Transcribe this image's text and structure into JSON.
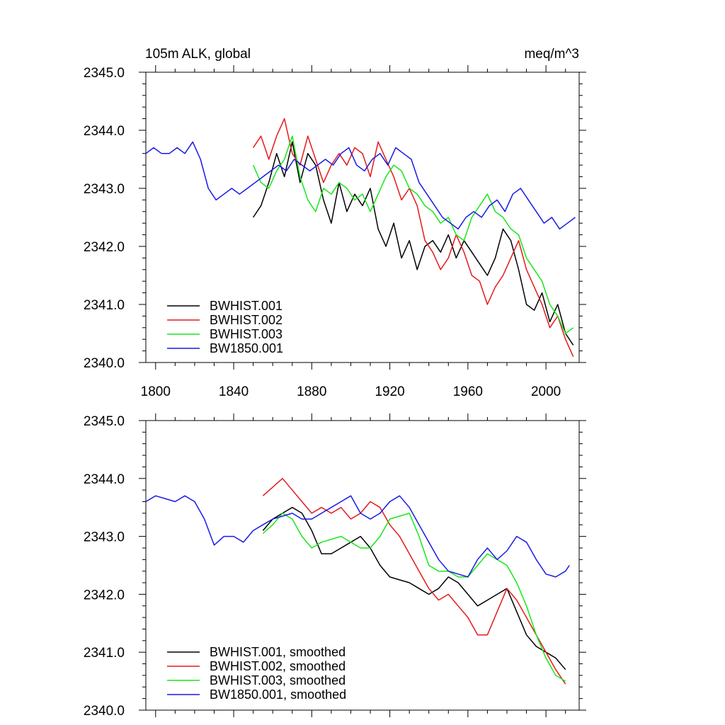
{
  "colors": {
    "black": "#000000",
    "red": "#e41a1c",
    "green": "#19e619",
    "blue": "#1919e6"
  },
  "chart_data": [
    {
      "type": "line",
      "title": "105m ALK, global",
      "units": "meq/m^3",
      "xlim": [
        1795,
        2017
      ],
      "ylim": [
        2340.0,
        2345.0
      ],
      "x_ticks": [
        "1800",
        "1840",
        "1880",
        "1920",
        "1960",
        "2000"
      ],
      "y_ticks": [
        "2340.0",
        "2341.0",
        "2342.0",
        "2343.0",
        "2344.0",
        "2345.0"
      ],
      "legend_position": "bottom-left",
      "series": [
        {
          "name": "BWHIST.001",
          "color": "#000000",
          "x": [
            1850,
            1854,
            1858,
            1862,
            1866,
            1870,
            1874,
            1878,
            1882,
            1886,
            1890,
            1894,
            1898,
            1902,
            1906,
            1910,
            1914,
            1918,
            1922,
            1926,
            1930,
            1934,
            1938,
            1942,
            1946,
            1950,
            1954,
            1958,
            1962,
            1966,
            1970,
            1974,
            1978,
            1982,
            1986,
            1990,
            1994,
            1998,
            2002,
            2006,
            2010,
            2014
          ],
          "y": [
            2342.5,
            2342.7,
            2343.1,
            2343.6,
            2343.2,
            2343.8,
            2343.1,
            2343.6,
            2343.4,
            2342.8,
            2342.4,
            2343.1,
            2342.6,
            2342.9,
            2342.7,
            2343.0,
            2342.3,
            2342.0,
            2342.4,
            2341.8,
            2342.1,
            2341.6,
            2342.0,
            2342.1,
            2341.9,
            2342.2,
            2341.8,
            2342.1,
            2341.9,
            2341.7,
            2341.5,
            2341.8,
            2342.3,
            2342.1,
            2341.6,
            2341.0,
            2340.9,
            2341.2,
            2340.7,
            2341.0,
            2340.5,
            2340.3
          ]
        },
        {
          "name": "BWHIST.002",
          "color": "#e41a1c",
          "x": [
            1850,
            1854,
            1858,
            1862,
            1866,
            1870,
            1874,
            1878,
            1882,
            1886,
            1890,
            1894,
            1898,
            1902,
            1906,
            1910,
            1914,
            1918,
            1922,
            1926,
            1930,
            1934,
            1938,
            1942,
            1946,
            1950,
            1954,
            1958,
            1962,
            1966,
            1970,
            1974,
            1978,
            1982,
            1986,
            1990,
            1994,
            1998,
            2002,
            2006,
            2010,
            2014
          ],
          "y": [
            2343.7,
            2343.9,
            2343.5,
            2343.9,
            2344.2,
            2343.6,
            2343.4,
            2343.9,
            2343.5,
            2343.1,
            2343.4,
            2343.6,
            2343.4,
            2343.7,
            2343.6,
            2343.2,
            2343.8,
            2343.5,
            2343.2,
            2342.8,
            2343.0,
            2342.7,
            2342.1,
            2341.9,
            2341.6,
            2341.8,
            2342.2,
            2341.9,
            2341.5,
            2341.4,
            2341.0,
            2341.3,
            2341.5,
            2341.8,
            2342.1,
            2341.6,
            2341.3,
            2341.0,
            2340.6,
            2340.8,
            2340.4,
            2340.1
          ]
        },
        {
          "name": "BWHIST.003",
          "color": "#19e619",
          "x": [
            1850,
            1854,
            1858,
            1862,
            1866,
            1870,
            1874,
            1878,
            1882,
            1886,
            1890,
            1894,
            1898,
            1902,
            1906,
            1910,
            1914,
            1918,
            1922,
            1926,
            1930,
            1934,
            1938,
            1942,
            1946,
            1950,
            1954,
            1958,
            1962,
            1966,
            1970,
            1974,
            1978,
            1982,
            1986,
            1990,
            1994,
            1998,
            2002,
            2006,
            2010,
            2014
          ],
          "y": [
            2343.4,
            2343.1,
            2343.0,
            2343.3,
            2343.5,
            2343.9,
            2343.2,
            2342.8,
            2342.6,
            2343.0,
            2342.9,
            2343.1,
            2343.0,
            2342.8,
            2342.9,
            2342.6,
            2342.9,
            2343.2,
            2343.4,
            2343.3,
            2343.0,
            2342.9,
            2342.7,
            2342.6,
            2342.4,
            2342.5,
            2342.2,
            2342.1,
            2342.5,
            2342.7,
            2342.9,
            2342.6,
            2342.5,
            2342.3,
            2342.2,
            2341.8,
            2341.6,
            2341.4,
            2341.0,
            2340.8,
            2340.5,
            2340.6
          ]
        },
        {
          "name": "BW1850.001",
          "color": "#1919e6",
          "x": [
            1795,
            1799,
            1803,
            1807,
            1811,
            1815,
            1819,
            1823,
            1827,
            1831,
            1835,
            1839,
            1843,
            1847,
            1851,
            1855,
            1859,
            1863,
            1867,
            1871,
            1875,
            1879,
            1883,
            1887,
            1891,
            1895,
            1899,
            1903,
            1907,
            1911,
            1915,
            1919,
            1923,
            1927,
            1931,
            1935,
            1939,
            1943,
            1947,
            1951,
            1955,
            1959,
            1963,
            1967,
            1971,
            1975,
            1979,
            1983,
            1987,
            1991,
            1995,
            1999,
            2003,
            2007,
            2011,
            2015
          ],
          "y": [
            2343.6,
            2343.7,
            2343.6,
            2343.6,
            2343.7,
            2343.6,
            2343.8,
            2343.5,
            2343.0,
            2342.8,
            2342.9,
            2343.0,
            2342.9,
            2343.0,
            2343.1,
            2343.2,
            2343.3,
            2343.4,
            2343.3,
            2343.5,
            2343.4,
            2343.3,
            2343.4,
            2343.5,
            2343.4,
            2343.6,
            2343.7,
            2343.4,
            2343.3,
            2343.5,
            2343.6,
            2343.4,
            2343.7,
            2343.6,
            2343.5,
            2343.1,
            2342.9,
            2342.7,
            2342.5,
            2342.4,
            2342.3,
            2342.5,
            2342.6,
            2342.5,
            2342.7,
            2342.8,
            2342.6,
            2342.9,
            2343.0,
            2342.8,
            2342.6,
            2342.4,
            2342.5,
            2342.3,
            2342.4,
            2342.5
          ]
        }
      ]
    },
    {
      "type": "line",
      "xlim": [
        1795,
        2017
      ],
      "ylim": [
        2340.0,
        2345.0
      ],
      "y_ticks": [
        "2340.0",
        "2341.0",
        "2342.0",
        "2343.0",
        "2344.0",
        "2345.0"
      ],
      "legend_position": "bottom-left",
      "series": [
        {
          "name": "BWHIST.001, smoothed",
          "color": "#000000",
          "x": [
            1855,
            1860,
            1865,
            1870,
            1875,
            1880,
            1885,
            1890,
            1895,
            1900,
            1905,
            1910,
            1915,
            1920,
            1925,
            1930,
            1935,
            1940,
            1945,
            1950,
            1955,
            1960,
            1965,
            1970,
            1975,
            1980,
            1985,
            1990,
            1995,
            2000,
            2005,
            2010
          ],
          "y": [
            2343.1,
            2343.3,
            2343.4,
            2343.5,
            2343.4,
            2343.1,
            2342.7,
            2342.7,
            2342.8,
            2342.9,
            2343.0,
            2342.8,
            2342.5,
            2342.3,
            2342.25,
            2342.2,
            2342.1,
            2342.0,
            2342.1,
            2342.3,
            2342.2,
            2342.0,
            2341.8,
            2341.9,
            2342.0,
            2342.1,
            2341.7,
            2341.3,
            2341.1,
            2341.0,
            2340.9,
            2340.7
          ]
        },
        {
          "name": "BWHIST.002, smoothed",
          "color": "#e41a1c",
          "x": [
            1855,
            1860,
            1865,
            1870,
            1875,
            1880,
            1885,
            1890,
            1895,
            1900,
            1905,
            1910,
            1915,
            1920,
            1925,
            1930,
            1935,
            1940,
            1945,
            1950,
            1955,
            1960,
            1965,
            1970,
            1975,
            1980,
            1985,
            1990,
            1995,
            2000,
            2005,
            2010
          ],
          "y": [
            2343.7,
            2343.85,
            2344.0,
            2343.8,
            2343.6,
            2343.4,
            2343.5,
            2343.4,
            2343.5,
            2343.3,
            2343.4,
            2343.6,
            2343.5,
            2343.2,
            2343.0,
            2342.7,
            2342.4,
            2342.1,
            2341.9,
            2342.0,
            2341.8,
            2341.6,
            2341.3,
            2341.3,
            2341.7,
            2342.1,
            2341.9,
            2341.6,
            2341.3,
            2341.0,
            2340.7,
            2340.45
          ]
        },
        {
          "name": "BWHIST.003, smoothed",
          "color": "#19e619",
          "x": [
            1855,
            1860,
            1865,
            1870,
            1875,
            1880,
            1885,
            1890,
            1895,
            1900,
            1905,
            1910,
            1915,
            1920,
            1925,
            1930,
            1935,
            1940,
            1945,
            1950,
            1955,
            1960,
            1965,
            1970,
            1975,
            1980,
            1985,
            1990,
            1995,
            2000,
            2005,
            2010
          ],
          "y": [
            2343.05,
            2343.2,
            2343.4,
            2343.3,
            2343.0,
            2342.8,
            2342.9,
            2342.95,
            2343.0,
            2342.9,
            2342.8,
            2342.8,
            2343.0,
            2343.3,
            2343.35,
            2343.4,
            2343.0,
            2342.5,
            2342.4,
            2342.4,
            2342.3,
            2342.3,
            2342.5,
            2342.7,
            2342.6,
            2342.5,
            2342.2,
            2341.8,
            2341.3,
            2340.9,
            2340.6,
            2340.5
          ]
        },
        {
          "name": "BW1850.001, smoothed",
          "color": "#1919e6",
          "x": [
            1795,
            1800,
            1805,
            1810,
            1815,
            1820,
            1825,
            1830,
            1835,
            1840,
            1845,
            1850,
            1855,
            1860,
            1865,
            1870,
            1875,
            1880,
            1885,
            1890,
            1895,
            1900,
            1905,
            1910,
            1915,
            1920,
            1925,
            1930,
            1935,
            1940,
            1945,
            1950,
            1955,
            1960,
            1965,
            1970,
            1975,
            1980,
            1985,
            1990,
            1995,
            2000,
            2005,
            2010,
            2012
          ],
          "y": [
            2343.6,
            2343.7,
            2343.65,
            2343.6,
            2343.7,
            2343.6,
            2343.3,
            2342.85,
            2343.0,
            2343.0,
            2342.9,
            2343.1,
            2343.2,
            2343.3,
            2343.35,
            2343.4,
            2343.3,
            2343.3,
            2343.4,
            2343.5,
            2343.6,
            2343.7,
            2343.4,
            2343.3,
            2343.4,
            2343.6,
            2343.7,
            2343.5,
            2343.2,
            2342.9,
            2342.6,
            2342.4,
            2342.35,
            2342.3,
            2342.6,
            2342.8,
            2342.6,
            2342.75,
            2343.0,
            2342.9,
            2342.6,
            2342.35,
            2342.3,
            2342.4,
            2342.5
          ]
        }
      ]
    }
  ]
}
